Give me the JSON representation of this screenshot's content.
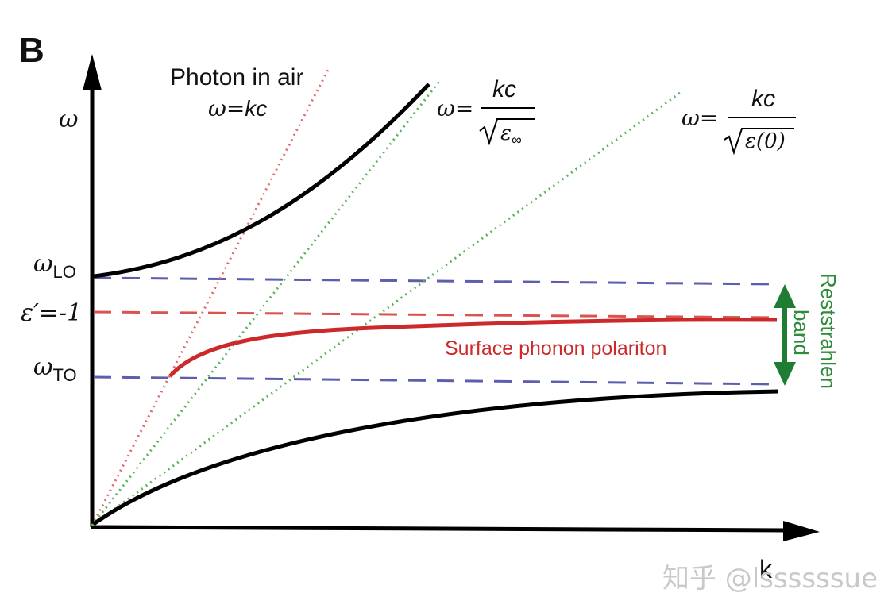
{
  "panel_label": "B",
  "axes": {
    "y_symbol": "ω",
    "x_symbol": "k"
  },
  "levels": {
    "omega_LO": {
      "sym": "ω",
      "sub": "LO"
    },
    "eps_minus_one": {
      "text": "ε′=-1"
    },
    "omega_TO": {
      "sym": "ω",
      "sub": "TO"
    }
  },
  "photon_in_air": {
    "title": "Photon in air",
    "eq_lhs": "ω=",
    "eq_rhs": "kc"
  },
  "eq_eps_inf": {
    "lhs": "ω=",
    "numerator": "kc",
    "den_symbol": "ε",
    "den_sub": "∞"
  },
  "eq_eps_zero": {
    "lhs": "ω=",
    "numerator": "kc",
    "den_text": "ε(0)"
  },
  "spp_label": "Surface phonon polariton",
  "reststrahlen": {
    "line1": "Reststrahlen",
    "line2": "band"
  },
  "watermark": "知乎 @lssssssue",
  "colors": {
    "axis": "#000000",
    "curve": "#000000",
    "dashed_blue": "#5b5fae",
    "dashed_red": "#d9534f",
    "photon_dotted": "#e26a6a",
    "light_lines": "#5ab35a",
    "spp": "#cc2a2a",
    "band_arrow": "#1e7d32",
    "band_text": "#2e8b3a"
  }
}
